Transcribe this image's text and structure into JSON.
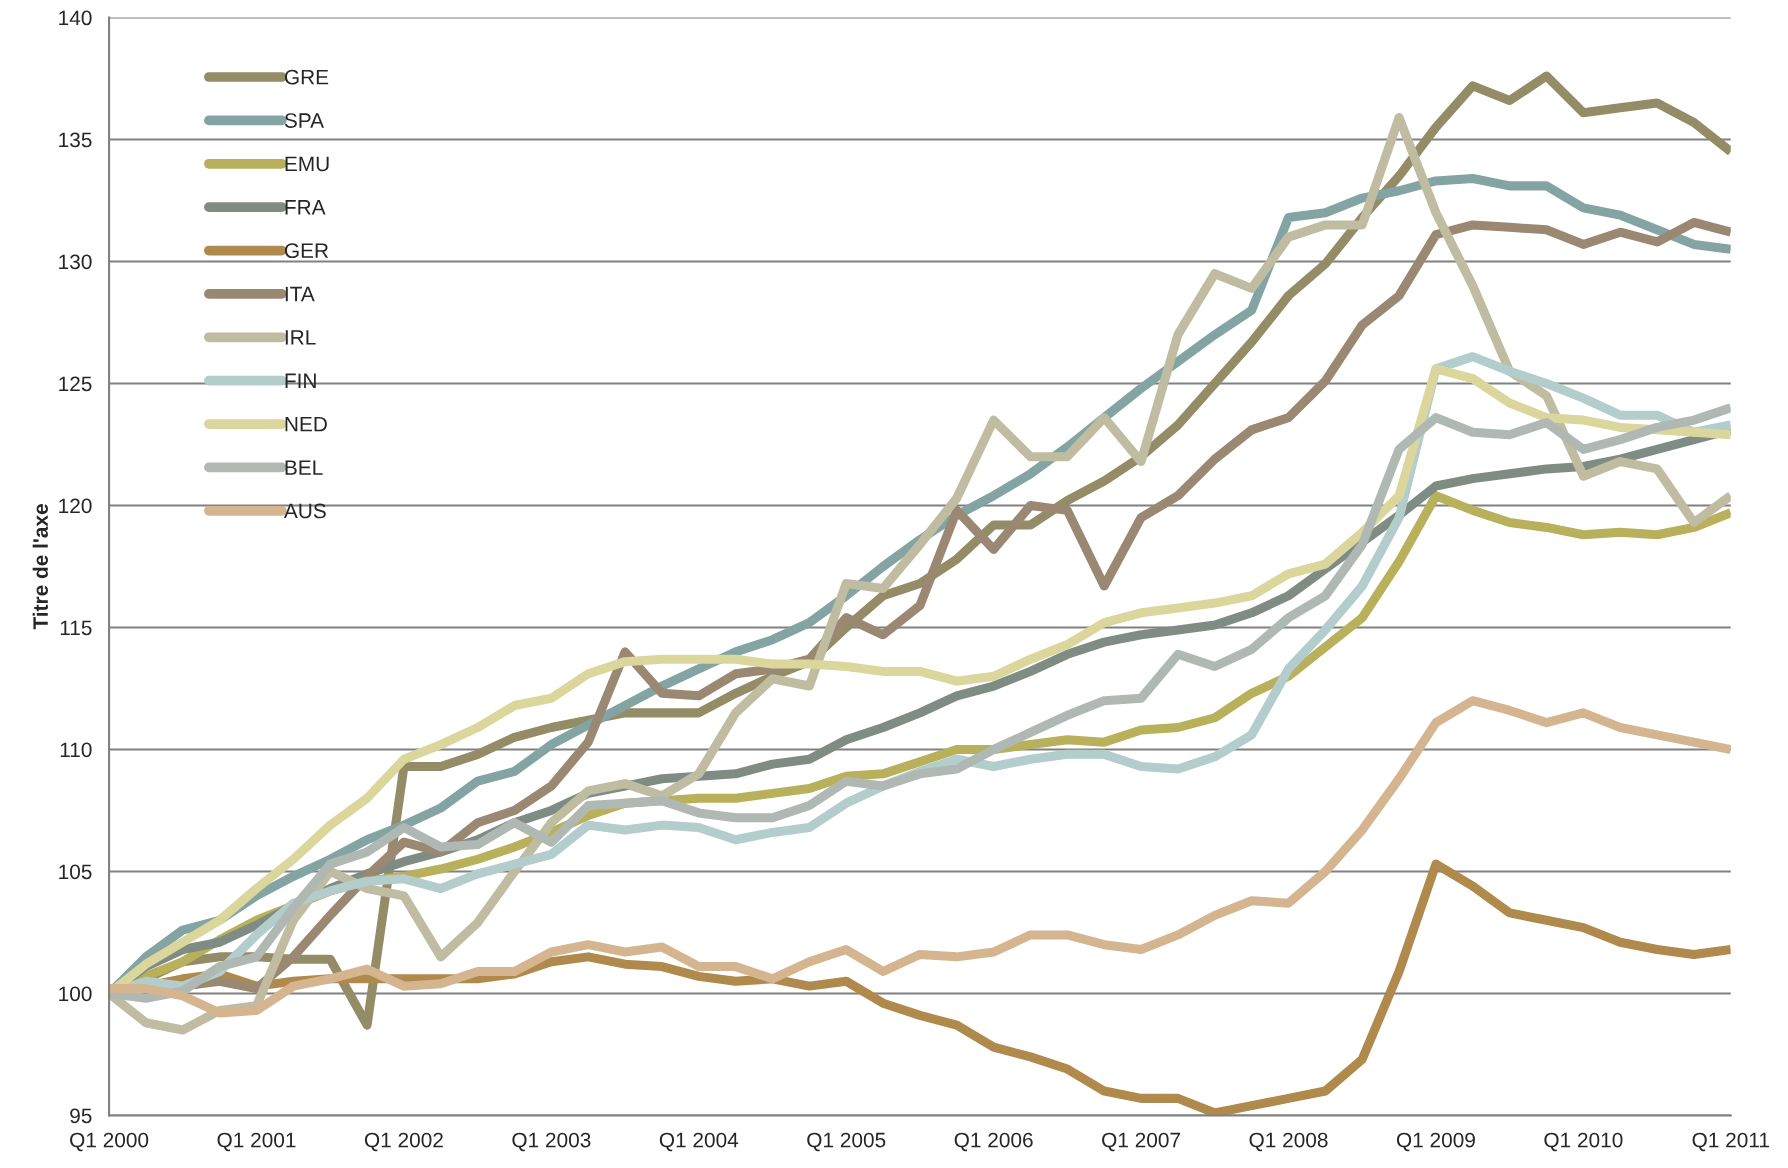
{
  "chart_data": {
    "type": "line",
    "ylabel": "Titre de l'axe",
    "categories": [
      "Q1 2000",
      null,
      null,
      null,
      "Q1 2001",
      null,
      null,
      null,
      "Q1 2002",
      null,
      null,
      null,
      "Q1 2003",
      null,
      null,
      null,
      "Q1 2004",
      null,
      null,
      null,
      "Q1 2005",
      null,
      null,
      null,
      "Q1 2006",
      null,
      null,
      null,
      "Q1 2007",
      null,
      null,
      null,
      "Q1 2008",
      null,
      null,
      null,
      "Q1 2009",
      null,
      null,
      null,
      "Q1 2010",
      null,
      null,
      null,
      "Q1 2011"
    ],
    "ylim": [
      95,
      140
    ],
    "yticks": [
      95,
      100,
      105,
      110,
      115,
      120,
      125,
      130,
      135,
      140
    ],
    "grid": "y",
    "legend": "top left",
    "marker": "none",
    "line_style": "solid",
    "series": [
      {
        "name": "GRE",
        "color": "#948c66",
        "values": [
          100,
          100.6,
          101.3,
          101.5,
          101.5,
          101.4,
          101.4,
          98.7,
          109.3,
          109.3,
          109.8,
          110.5,
          110.9,
          111.2,
          111.5,
          111.5,
          111.5,
          112.3,
          113.0,
          113.6,
          115.0,
          116.3,
          116.8,
          117.8,
          119.2,
          119.2,
          120.2,
          121.0,
          122.0,
          123.3,
          125.0,
          126.7,
          128.6,
          129.9,
          131.8,
          133.5,
          135.5,
          137.2,
          136.6,
          137.6,
          136.1,
          136.3,
          136.5,
          135.7,
          134.5
        ]
      },
      {
        "name": "SPA",
        "color": "#84a4a4",
        "values": [
          100,
          101.5,
          102.6,
          103.0,
          104.0,
          104.8,
          105.5,
          106.3,
          106.9,
          107.6,
          108.7,
          109.1,
          110.2,
          111.0,
          111.8,
          112.6,
          113.3,
          114.0,
          114.5,
          115.2,
          116.3,
          117.5,
          118.6,
          119.6,
          120.4,
          121.3,
          122.4,
          123.6,
          124.8,
          125.9,
          127.0,
          128.0,
          131.8,
          132.0,
          132.6,
          132.9,
          133.3,
          133.4,
          133.1,
          133.1,
          132.2,
          131.9,
          131.3,
          130.7,
          130.5
        ]
      },
      {
        "name": "EMU",
        "color": "#b8b05a",
        "values": [
          100,
          100.7,
          101.3,
          102.2,
          103.0,
          103.6,
          104.2,
          104.6,
          104.8,
          105.1,
          105.5,
          106.0,
          106.6,
          107.3,
          107.8,
          107.9,
          108.0,
          108.0,
          108.2,
          108.4,
          108.9,
          109.0,
          109.5,
          110.0,
          110.0,
          110.2,
          110.4,
          110.3,
          110.8,
          110.9,
          111.3,
          112.3,
          113.0,
          114.2,
          115.4,
          117.7,
          120.4,
          119.8,
          119.3,
          119.1,
          118.8,
          118.9,
          118.8,
          119.1,
          119.7
        ]
      },
      {
        "name": "FRA",
        "color": "#7f8c84",
        "values": [
          100,
          101.1,
          101.8,
          102.1,
          102.8,
          103.6,
          104.3,
          104.9,
          105.4,
          105.8,
          106.3,
          107.0,
          107.5,
          108.2,
          108.5,
          108.8,
          108.9,
          109.0,
          109.4,
          109.6,
          110.4,
          110.9,
          111.5,
          112.2,
          112.6,
          113.2,
          113.9,
          114.4,
          114.7,
          114.9,
          115.1,
          115.6,
          116.3,
          117.4,
          118.5,
          119.6,
          120.8,
          121.1,
          121.3,
          121.5,
          121.6,
          121.9,
          122.3,
          122.7,
          123.1
        ]
      },
      {
        "name": "GER",
        "color": "#b08a4c",
        "values": [
          100,
          100.3,
          100.6,
          100.8,
          100.3,
          100.5,
          100.6,
          100.6,
          100.6,
          100.6,
          100.6,
          100.8,
          101.3,
          101.5,
          101.2,
          101.1,
          100.7,
          100.5,
          100.6,
          100.3,
          100.5,
          99.6,
          99.1,
          98.7,
          97.8,
          97.4,
          96.9,
          96.0,
          95.7,
          95.7,
          95.1,
          95.4,
          95.7,
          96.0,
          97.3,
          100.9,
          105.3,
          104.4,
          103.3,
          103.0,
          102.7,
          102.1,
          101.8,
          101.6,
          101.8
        ]
      },
      {
        "name": "ITA",
        "color": "#9b8872",
        "values": [
          100,
          100,
          100.3,
          100.5,
          100.2,
          101.5,
          103.2,
          104.8,
          106.2,
          105.8,
          107.0,
          107.5,
          108.5,
          110.3,
          114.0,
          112.3,
          112.2,
          113.1,
          113.3,
          113.7,
          115.4,
          114.7,
          115.9,
          119.8,
          118.2,
          120.0,
          119.8,
          116.7,
          119.5,
          120.4,
          121.9,
          123.1,
          123.6,
          125.1,
          127.4,
          128.6,
          131.1,
          131.5,
          131.4,
          131.3,
          130.7,
          131.2,
          130.8,
          131.6,
          131.2
        ]
      },
      {
        "name": "IRL",
        "color": "#c0bca2",
        "values": [
          100,
          98.8,
          98.5,
          99.3,
          99.5,
          103.0,
          105.0,
          104.3,
          104.0,
          101.5,
          102.9,
          105.0,
          107.0,
          108.3,
          108.6,
          108.1,
          109.0,
          111.5,
          112.9,
          112.6,
          116.8,
          116.6,
          118.4,
          120.3,
          123.5,
          122.0,
          122.0,
          123.6,
          121.8,
          127.0,
          129.5,
          128.9,
          131.0,
          131.5,
          131.5,
          135.9,
          132.0,
          129.0,
          125.5,
          124.5,
          121.2,
          121.8,
          121.5,
          119.3,
          120.4
        ]
      },
      {
        "name": "FIN",
        "color": "#b3cccc",
        "values": [
          100,
          100.5,
          100.3,
          100.9,
          102.4,
          103.7,
          104.2,
          104.6,
          104.7,
          104.3,
          104.9,
          105.3,
          105.7,
          106.9,
          106.7,
          106.9,
          106.8,
          106.3,
          106.6,
          106.8,
          107.8,
          108.5,
          109.1,
          109.6,
          109.3,
          109.6,
          109.8,
          109.8,
          109.3,
          109.2,
          109.7,
          110.6,
          113.3,
          114.9,
          116.7,
          119.5,
          125.6,
          126.1,
          125.5,
          125.0,
          124.4,
          123.7,
          123.7,
          123.0,
          123.3
        ]
      },
      {
        "name": "NED",
        "color": "#dad69c",
        "values": [
          100,
          101.2,
          102.1,
          103.0,
          104.3,
          105.5,
          106.9,
          108.0,
          109.6,
          110.2,
          110.9,
          111.8,
          112.1,
          113.1,
          113.6,
          113.7,
          113.7,
          113.7,
          113.5,
          113.5,
          113.4,
          113.2,
          113.2,
          112.8,
          113.0,
          113.7,
          114.3,
          115.2,
          115.6,
          115.8,
          116.0,
          116.3,
          117.2,
          117.6,
          118.9,
          120.4,
          125.6,
          125.2,
          124.2,
          123.6,
          123.5,
          123.2,
          123.1,
          123.0,
          122.9
        ]
      },
      {
        "name": "BEL",
        "color": "#b0b8b4",
        "values": [
          100,
          99.8,
          100.1,
          101.1,
          101.5,
          103.5,
          105.3,
          105.8,
          106.8,
          106.0,
          106.1,
          107.0,
          106.2,
          107.7,
          107.8,
          107.9,
          107.4,
          107.2,
          107.2,
          107.7,
          108.7,
          108.5,
          109.0,
          109.2,
          110.0,
          110.7,
          111.4,
          112.0,
          112.1,
          113.9,
          113.4,
          114.1,
          115.4,
          116.3,
          118.4,
          122.3,
          123.6,
          123.0,
          122.9,
          123.4,
          122.3,
          122.7,
          123.2,
          123.5,
          124.0
        ]
      },
      {
        "name": "AUS",
        "color": "#d4b590",
        "values": [
          100.2,
          100.2,
          99.9,
          99.2,
          99.3,
          100.3,
          100.6,
          101.0,
          100.3,
          100.4,
          100.9,
          100.9,
          101.7,
          102.0,
          101.7,
          101.9,
          101.1,
          101.1,
          100.6,
          101.3,
          101.8,
          100.9,
          101.6,
          101.5,
          101.7,
          102.4,
          102.4,
          102.0,
          101.8,
          102.4,
          103.2,
          103.8,
          103.7,
          105.0,
          106.7,
          108.8,
          111.1,
          112.0,
          111.6,
          111.1,
          111.5,
          110.9,
          110.6,
          110.3,
          110.0
        ]
      }
    ]
  }
}
